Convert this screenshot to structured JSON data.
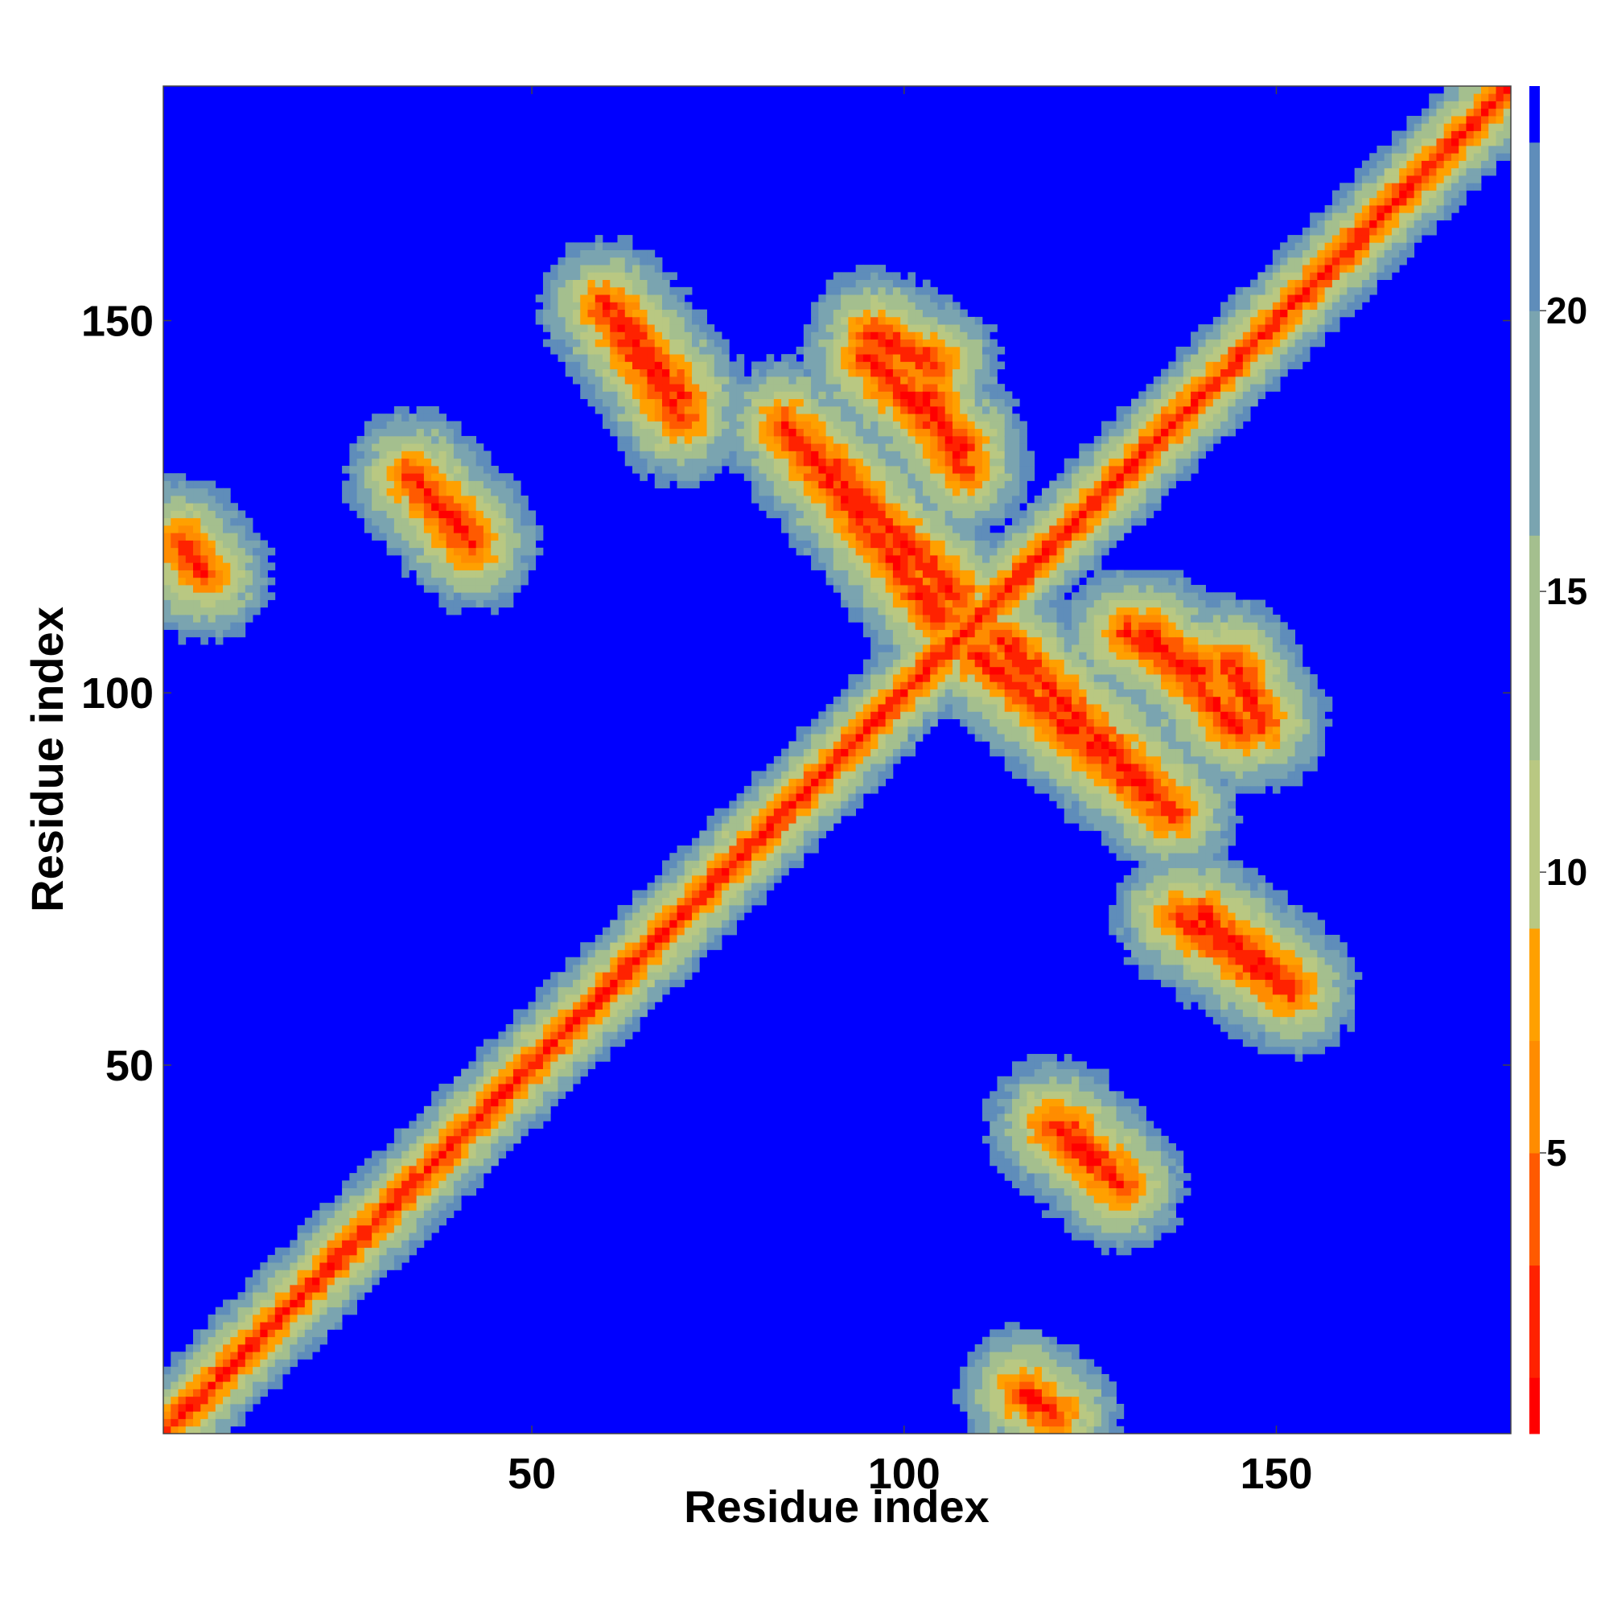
{
  "chart_data": {
    "type": "heatmap",
    "title": "",
    "xlabel": "Residue index",
    "ylabel": "Residue index",
    "xlim": [
      1,
      181
    ],
    "ylim": [
      1,
      181
    ],
    "x_ticks": [
      50,
      100,
      150
    ],
    "y_ticks": [
      50,
      100,
      150
    ],
    "x_tick_labels": [
      "50",
      "100",
      "150"
    ],
    "y_tick_labels": [
      "50",
      "100",
      "150"
    ],
    "colorbar": {
      "range": [
        0,
        24
      ],
      "ticks": [
        5,
        10,
        15,
        20
      ],
      "tick_labels": [
        "5",
        "10",
        "15",
        "20"
      ],
      "bins": [
        {
          "from": 0,
          "to": 1,
          "color": "#ff0000"
        },
        {
          "from": 1,
          "to": 3,
          "color": "#ff2200"
        },
        {
          "from": 3,
          "to": 5,
          "color": "#ff5a00"
        },
        {
          "from": 5,
          "to": 7,
          "color": "#ff8c00"
        },
        {
          "from": 7,
          "to": 9,
          "color": "#ffa000"
        },
        {
          "from": 9,
          "to": 12,
          "color": "#b9c882"
        },
        {
          "from": 12,
          "to": 16,
          "color": "#a4bf8e"
        },
        {
          "from": 16,
          "to": 20,
          "color": "#7aa4b0"
        },
        {
          "from": 20,
          "to": 23,
          "color": "#5f8dba"
        },
        {
          "from": 23,
          "to": 24,
          "color": "#0000ff"
        }
      ]
    },
    "grid": false,
    "background_color": "#0000ff",
    "contact_features": [
      {
        "kind": "diagonal",
        "x0": 1,
        "y0": 1,
        "x1": 181,
        "y1": 181
      },
      {
        "kind": "segment",
        "x0": 62,
        "y0": 150,
        "x1": 70,
        "y1": 140
      },
      {
        "kind": "segment",
        "x0": 87,
        "y0": 133,
        "x1": 107,
        "y1": 113
      },
      {
        "kind": "segment",
        "x0": 96,
        "y0": 148,
        "x1": 104,
        "y1": 144
      },
      {
        "kind": "segment",
        "x0": 103,
        "y0": 140,
        "x1": 108,
        "y1": 130
      },
      {
        "kind": "segment",
        "x0": 110,
        "y0": 105,
        "x1": 136,
        "y1": 84
      },
      {
        "kind": "segment",
        "x0": 133,
        "y0": 108,
        "x1": 145,
        "y1": 95
      },
      {
        "kind": "segment",
        "x0": 137,
        "y0": 70,
        "x1": 152,
        "y1": 60
      },
      {
        "kind": "segment",
        "x0": 34,
        "y0": 129,
        "x1": 42,
        "y1": 120
      },
      {
        "kind": "segment",
        "x0": 122,
        "y0": 41,
        "x1": 127,
        "y1": 36
      },
      {
        "kind": "segment",
        "x0": 116,
        "y0": 6,
        "x1": 120,
        "y1": 3
      }
    ]
  }
}
